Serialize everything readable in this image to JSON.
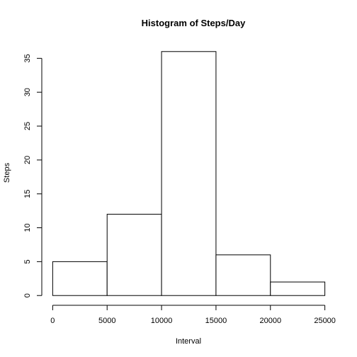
{
  "chart_data": {
    "type": "bar",
    "title": "Histogram of Steps/Day",
    "xlabel": "Interval",
    "ylabel": "Steps",
    "bins": [
      {
        "from": 0,
        "to": 5000,
        "value": 5
      },
      {
        "from": 5000,
        "to": 10000,
        "value": 12
      },
      {
        "from": 10000,
        "to": 15000,
        "value": 36
      },
      {
        "from": 15000,
        "to": 20000,
        "value": 6
      },
      {
        "from": 20000,
        "to": 25000,
        "value": 2
      }
    ],
    "xlim": [
      0,
      25000
    ],
    "ylim": [
      0,
      36
    ],
    "x_ticks": [
      0,
      5000,
      10000,
      15000,
      20000,
      25000
    ],
    "x_tick_labels": [
      "0",
      "5000",
      "10000",
      "15000",
      "20000",
      "25000"
    ],
    "y_ticks": [
      0,
      5,
      10,
      15,
      20,
      25,
      30,
      35
    ],
    "y_tick_labels": [
      "0",
      "5",
      "10",
      "15",
      "20",
      "25",
      "30",
      "35"
    ],
    "grid": false,
    "bar_fill": "#ffffff",
    "bar_stroke": "#000000"
  }
}
